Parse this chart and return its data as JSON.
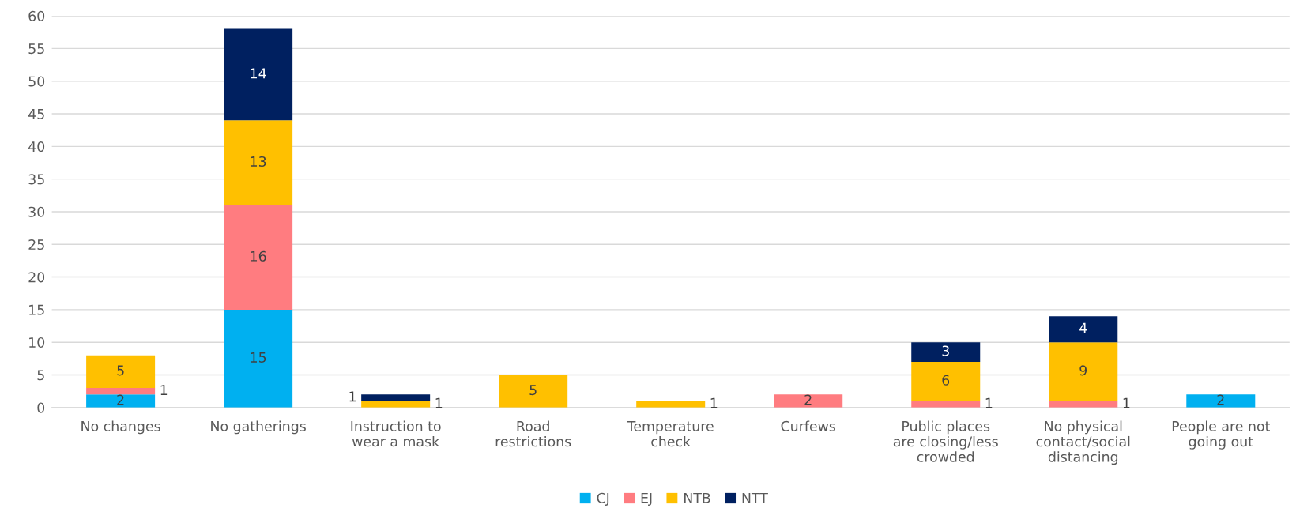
{
  "chart_data": {
    "type": "bar",
    "stacked": true,
    "categories": [
      "No changes",
      "No gatherings",
      "Instruction to wear a mask",
      "Road restrictions",
      "Temperature check",
      "Curfews",
      "Public places are closing/less crowded",
      "No physical contact/social distancing",
      "People are not going out"
    ],
    "series": [
      {
        "name": "CJ",
        "color": "#00b0f0",
        "values": [
          2,
          15,
          null,
          null,
          null,
          null,
          null,
          null,
          2
        ]
      },
      {
        "name": "EJ",
        "color": "#ff7c80",
        "values": [
          1,
          16,
          null,
          null,
          null,
          2,
          1,
          1,
          null
        ]
      },
      {
        "name": "NTB",
        "color": "#ffc000",
        "values": [
          5,
          13,
          1,
          5,
          1,
          null,
          6,
          9,
          null
        ]
      },
      {
        "name": "NTT",
        "color": "#002060",
        "values": [
          null,
          14,
          1,
          null,
          null,
          null,
          3,
          4,
          null
        ]
      }
    ],
    "ylim": [
      0,
      60
    ],
    "yticks": [
      0,
      5,
      10,
      15,
      20,
      25,
      30,
      35,
      40,
      45,
      50,
      55,
      60
    ],
    "grid": "y",
    "legend": "bottom",
    "data_labels": true
  }
}
